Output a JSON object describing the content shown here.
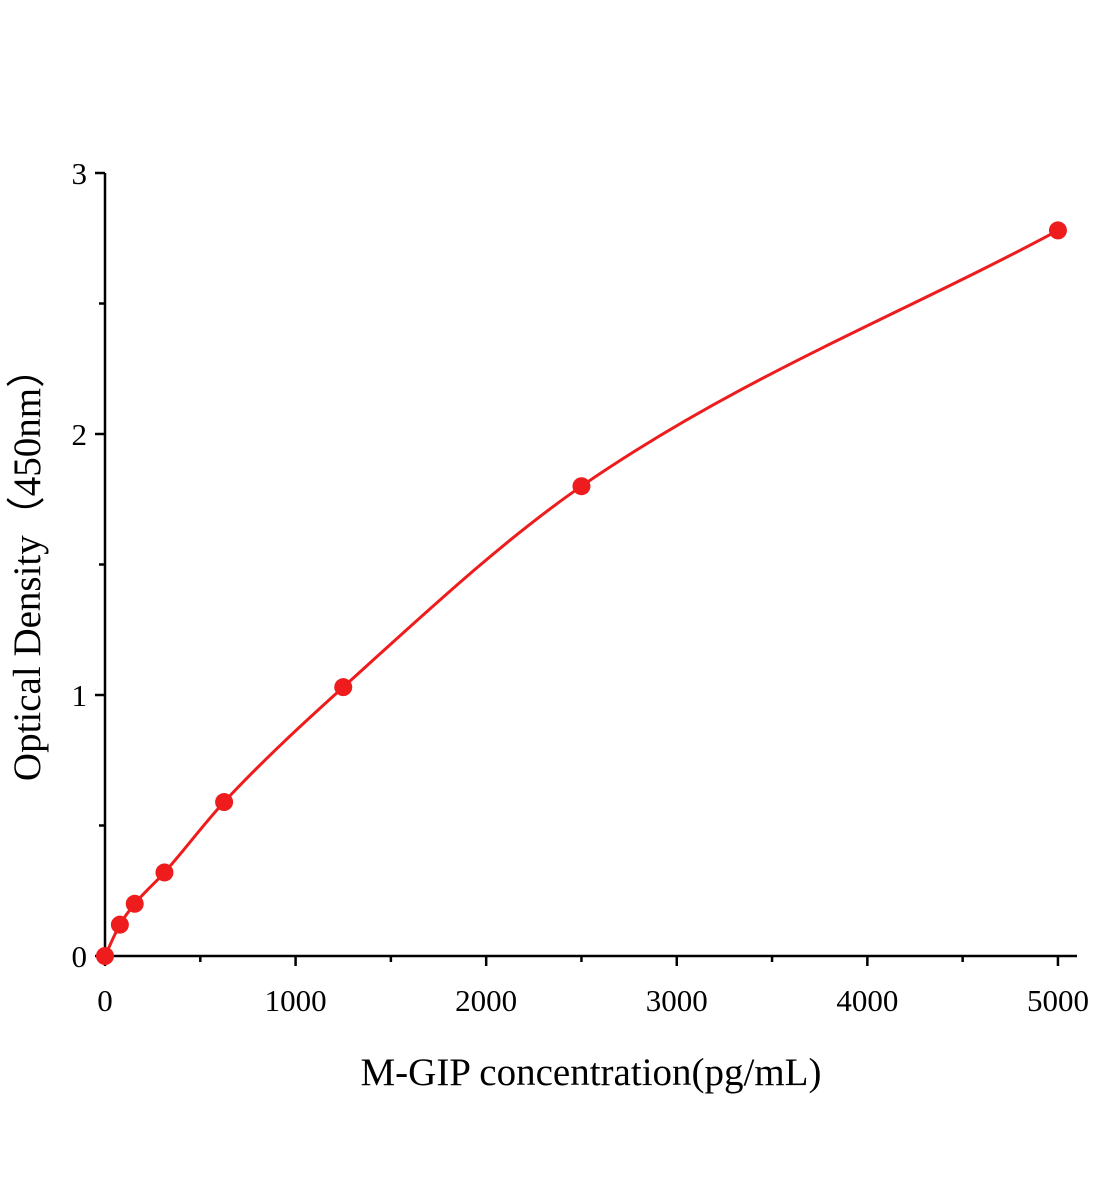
{
  "chart_data": {
    "type": "line",
    "smooth": true,
    "markers": true,
    "xlabel": "M-GIP concentration(pg/mL)",
    "ylabel": "Optical Density（450nm）",
    "x": [
      0,
      78,
      156,
      312,
      625,
      1250,
      2500,
      5000
    ],
    "series": [
      {
        "color": "#ee1c1c",
        "values": [
          0.0,
          0.12,
          0.2,
          0.32,
          0.59,
          1.03,
          1.8,
          2.78
        ]
      }
    ],
    "xlim": [
      0,
      5100
    ],
    "ylim": [
      0,
      3
    ],
    "xticks": [
      0,
      1000,
      2000,
      3000,
      4000,
      5000
    ],
    "xminorticks": [
      500,
      1500,
      2500,
      3500,
      4500
    ],
    "yticks": [
      0,
      1,
      2,
      3
    ],
    "yminorticks": [
      0.5,
      1.5,
      2.5
    ],
    "grid": false
  }
}
